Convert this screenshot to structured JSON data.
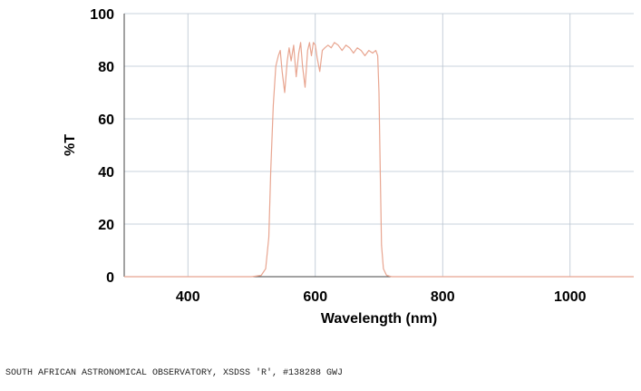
{
  "chart_data": {
    "type": "line",
    "title": "",
    "xlabel": "Wavelength (nm)",
    "ylabel": "%T",
    "xlim": [
      300,
      1100
    ],
    "ylim": [
      0,
      100
    ],
    "x_ticks": [
      400,
      600,
      800,
      1000
    ],
    "y_ticks": [
      0,
      20,
      40,
      60,
      80,
      100
    ],
    "grid": true,
    "series": [
      {
        "x": [
          300,
          500,
          515,
          522,
          527,
          530,
          534,
          538,
          542,
          545,
          548,
          552,
          556,
          559,
          562,
          566,
          570,
          574,
          577,
          580,
          584,
          588,
          591,
          594,
          597,
          600,
          603,
          607,
          611,
          615,
          620,
          625,
          630,
          636,
          642,
          648,
          654,
          660,
          666,
          672,
          678,
          684,
          690,
          695,
          698,
          700,
          702,
          704,
          707,
          712,
          720,
          800,
          1000,
          1100
        ],
        "y": [
          0,
          0,
          0.5,
          3,
          15,
          40,
          65,
          80,
          84,
          86,
          78,
          70,
          82,
          87,
          82,
          88,
          76,
          85,
          89,
          80,
          72,
          86,
          89,
          84,
          89,
          88,
          83,
          78,
          86,
          87,
          88,
          87,
          89,
          88,
          86,
          88,
          87,
          85,
          87,
          86,
          84,
          86,
          85,
          86,
          84,
          70,
          40,
          12,
          3,
          0.5,
          0,
          0,
          0,
          0
        ]
      }
    ]
  },
  "footer": {
    "text": "SOUTH AFRICAN ASTRONOMICAL OBSERVATORY, XSDSS 'R', #138288  GWJ"
  },
  "colors": {
    "curve": "#e8a590",
    "grid": "#b8c4d0",
    "axis": "#444444"
  }
}
